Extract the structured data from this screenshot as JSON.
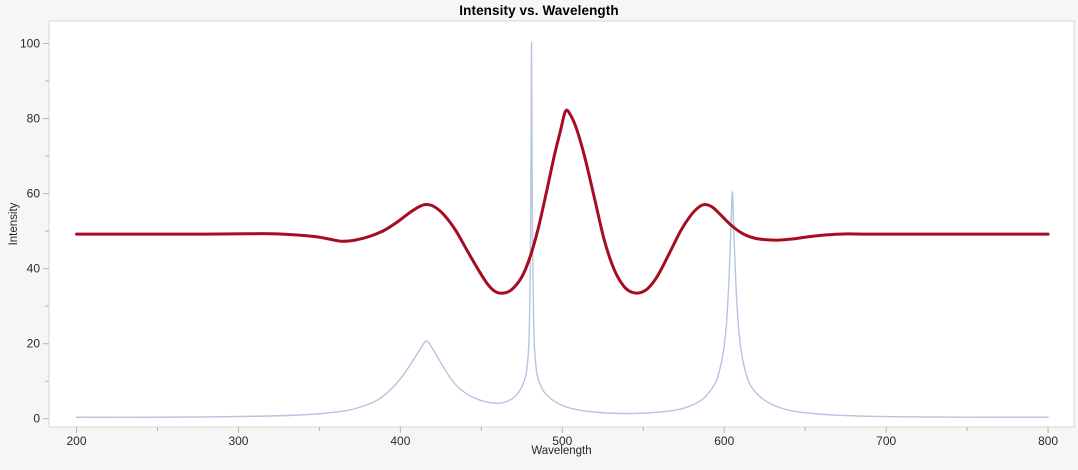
{
  "page": {
    "background": "#f6f6f5",
    "plot_background": "#ffffff"
  },
  "chart_data": {
    "type": "line",
    "title": "Intensity vs. Wavelength",
    "xlabel": "Wavelength",
    "ylabel": "Intensity",
    "xlim": [
      183,
      816
    ],
    "ylim": [
      -2.2,
      106.0
    ],
    "grid": false,
    "legend_position": "none",
    "frame_color": "#d6d6d6",
    "tick_color": "#b4b4b4",
    "tick_label_color": "#2b2b2b",
    "x_ticks_major": [
      200,
      300,
      400,
      500,
      600,
      700,
      800
    ],
    "x_ticks_minor": [
      250,
      350,
      450,
      550,
      650,
      750
    ],
    "y_ticks_major": [
      0,
      20,
      40,
      60,
      80,
      100
    ],
    "y_ticks_minor": [
      10,
      30,
      50,
      70,
      90
    ],
    "series": [
      {
        "id": "series-dark-red",
        "color": "#a50d23",
        "stroke_width": 3,
        "baseline": 49.2,
        "peaks": [
          {
            "x": 416,
            "y": 57.1
          },
          {
            "x": 502,
            "y": 82.0
          },
          {
            "x": 588,
            "y": 57.1
          }
        ],
        "troughs": [
          {
            "x": 364,
            "y": 47.3
          },
          {
            "x": 461,
            "y": 33.5
          },
          {
            "x": 545,
            "y": 33.6
          },
          {
            "x": 631,
            "y": 47.6
          }
        ],
        "points": [
          [
            200,
            49.2
          ],
          [
            240,
            49.2
          ],
          [
            280,
            49.2
          ],
          [
            305,
            49.3
          ],
          [
            320,
            49.3
          ],
          [
            335,
            49.0
          ],
          [
            348,
            48.5
          ],
          [
            357,
            47.8
          ],
          [
            364,
            47.3
          ],
          [
            372,
            47.6
          ],
          [
            381,
            48.6
          ],
          [
            390,
            50.2
          ],
          [
            398,
            52.4
          ],
          [
            406,
            55.0
          ],
          [
            412,
            56.6
          ],
          [
            416,
            57.1
          ],
          [
            421,
            56.5
          ],
          [
            427,
            54.3
          ],
          [
            434,
            50.3
          ],
          [
            441,
            45.0
          ],
          [
            448,
            39.8
          ],
          [
            454,
            35.8
          ],
          [
            459,
            33.8
          ],
          [
            464,
            33.5
          ],
          [
            469,
            34.5
          ],
          [
            475,
            37.8
          ],
          [
            480,
            43.0
          ],
          [
            485,
            50.5
          ],
          [
            490,
            60.0
          ],
          [
            495,
            70.0
          ],
          [
            499,
            77.0
          ],
          [
            502,
            82.0
          ],
          [
            505,
            81.0
          ],
          [
            509,
            77.0
          ],
          [
            514,
            69.5
          ],
          [
            520,
            58.5
          ],
          [
            526,
            47.5
          ],
          [
            532,
            39.8
          ],
          [
            538,
            35.3
          ],
          [
            543,
            33.7
          ],
          [
            548,
            33.6
          ],
          [
            553,
            34.8
          ],
          [
            559,
            38.2
          ],
          [
            566,
            44.0
          ],
          [
            573,
            50.0
          ],
          [
            579,
            54.0
          ],
          [
            584,
            56.3
          ],
          [
            588,
            57.1
          ],
          [
            593,
            56.3
          ],
          [
            599,
            53.8
          ],
          [
            605,
            51.3
          ],
          [
            612,
            49.2
          ],
          [
            619,
            48.1
          ],
          [
            626,
            47.7
          ],
          [
            633,
            47.6
          ],
          [
            642,
            47.9
          ],
          [
            652,
            48.5
          ],
          [
            663,
            49.0
          ],
          [
            674,
            49.25
          ],
          [
            688,
            49.2
          ],
          [
            710,
            49.2
          ],
          [
            745,
            49.2
          ],
          [
            800,
            49.2
          ]
        ]
      },
      {
        "id": "series-light-blue",
        "color": "#b6c4e0",
        "stroke_width": 1.4,
        "baseline": 0.4,
        "peaks": [
          {
            "x": 416,
            "y": 20.7
          },
          {
            "x": 481,
            "y": 100.3
          },
          {
            "x": 605,
            "y": 60.5
          }
        ],
        "troughs": [
          {
            "x": 460,
            "y": 4.1
          },
          {
            "x": 540,
            "y": 1.4
          }
        ],
        "points": [
          [
            200,
            0.4
          ],
          [
            250,
            0.4
          ],
          [
            285,
            0.5
          ],
          [
            315,
            0.7
          ],
          [
            338,
            1.0
          ],
          [
            354,
            1.5
          ],
          [
            366,
            2.1
          ],
          [
            376,
            3.2
          ],
          [
            386,
            5.0
          ],
          [
            394,
            7.8
          ],
          [
            401,
            11.2
          ],
          [
            407,
            15.0
          ],
          [
            412,
            18.4
          ],
          [
            416,
            20.7
          ],
          [
            420,
            18.6
          ],
          [
            426,
            14.2
          ],
          [
            433,
            9.6
          ],
          [
            440,
            6.9
          ],
          [
            447,
            5.3
          ],
          [
            454,
            4.4
          ],
          [
            460,
            4.1
          ],
          [
            465,
            4.5
          ],
          [
            469,
            5.3
          ],
          [
            473,
            7.0
          ],
          [
            476,
            9.5
          ],
          [
            478,
            13.0
          ],
          [
            479.5,
            22.0
          ],
          [
            480.3,
            45.0
          ],
          [
            480.7,
            70.0
          ],
          [
            481,
            100.3
          ],
          [
            481.3,
            70.0
          ],
          [
            481.7,
            45.0
          ],
          [
            482.5,
            22.0
          ],
          [
            484,
            13.0
          ],
          [
            486,
            9.5
          ],
          [
            489,
            7.0
          ],
          [
            493,
            5.3
          ],
          [
            497,
            4.2
          ],
          [
            502,
            3.2
          ],
          [
            509,
            2.4
          ],
          [
            517,
            1.9
          ],
          [
            528,
            1.5
          ],
          [
            540,
            1.4
          ],
          [
            551,
            1.5
          ],
          [
            561,
            1.8
          ],
          [
            571,
            2.4
          ],
          [
            579,
            3.4
          ],
          [
            586,
            5.0
          ],
          [
            591,
            7.2
          ],
          [
            595,
            10.0
          ],
          [
            598,
            14.5
          ],
          [
            600,
            19.5
          ],
          [
            601.5,
            26.0
          ],
          [
            603,
            38.0
          ],
          [
            604.3,
            53.0
          ],
          [
            605,
            60.5
          ],
          [
            605.7,
            53.0
          ],
          [
            607,
            38.0
          ],
          [
            608.5,
            26.0
          ],
          [
            610,
            19.5
          ],
          [
            612,
            14.5
          ],
          [
            615,
            10.0
          ],
          [
            619,
            7.2
          ],
          [
            624,
            5.2
          ],
          [
            630,
            3.7
          ],
          [
            637,
            2.6
          ],
          [
            646,
            1.8
          ],
          [
            657,
            1.3
          ],
          [
            670,
            0.95
          ],
          [
            685,
            0.7
          ],
          [
            703,
            0.55
          ],
          [
            730,
            0.45
          ],
          [
            765,
            0.4
          ],
          [
            800,
            0.4
          ]
        ]
      }
    ]
  }
}
